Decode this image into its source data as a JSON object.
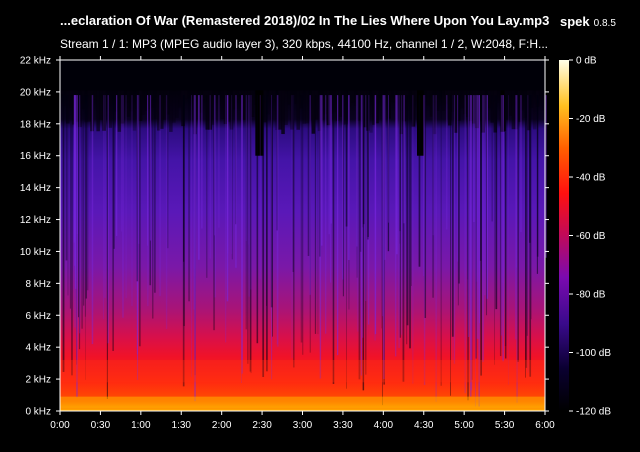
{
  "window": {
    "title": "...eclaration Of War (Remastered 2018)/02 In The Lies Where Upon You Lay.mp3",
    "app_name": "spek",
    "app_version": "0.8.5"
  },
  "stream_info": "Stream 1 / 1: MP3 (MPEG audio layer 3), 320 kbps, 44100 Hz, channel 1 / 2, W:2048, F:H...",
  "chart_data": {
    "type": "heatmap",
    "x_ticks": [
      "0:00",
      "0:30",
      "1:00",
      "1:30",
      "2:00",
      "2:30",
      "3:00",
      "3:30",
      "4:00",
      "4:30",
      "5:00",
      "5:30",
      "6:00"
    ],
    "y_ticks": [
      "0 kHz",
      "2 kHz",
      "4 kHz",
      "6 kHz",
      "8 kHz",
      "10 kHz",
      "12 kHz",
      "14 kHz",
      "16 kHz",
      "18 kHz",
      "20 kHz",
      "22 kHz"
    ],
    "x_range_seconds": [
      0,
      360
    ],
    "y_range_khz": [
      0,
      22
    ],
    "colorbar_ticks": [
      "0 dB",
      "-20 dB",
      "-40 dB",
      "-60 dB",
      "-80 dB",
      "-100 dB",
      "-120 dB"
    ],
    "colorbar_range_db": [
      -120,
      0
    ],
    "colors": {
      "background": "#000000",
      "axis": "#ffffff",
      "low": "#000010",
      "mid": "#6a18c8",
      "high": "#ff2000",
      "peak": "#ffffe8"
    }
  }
}
